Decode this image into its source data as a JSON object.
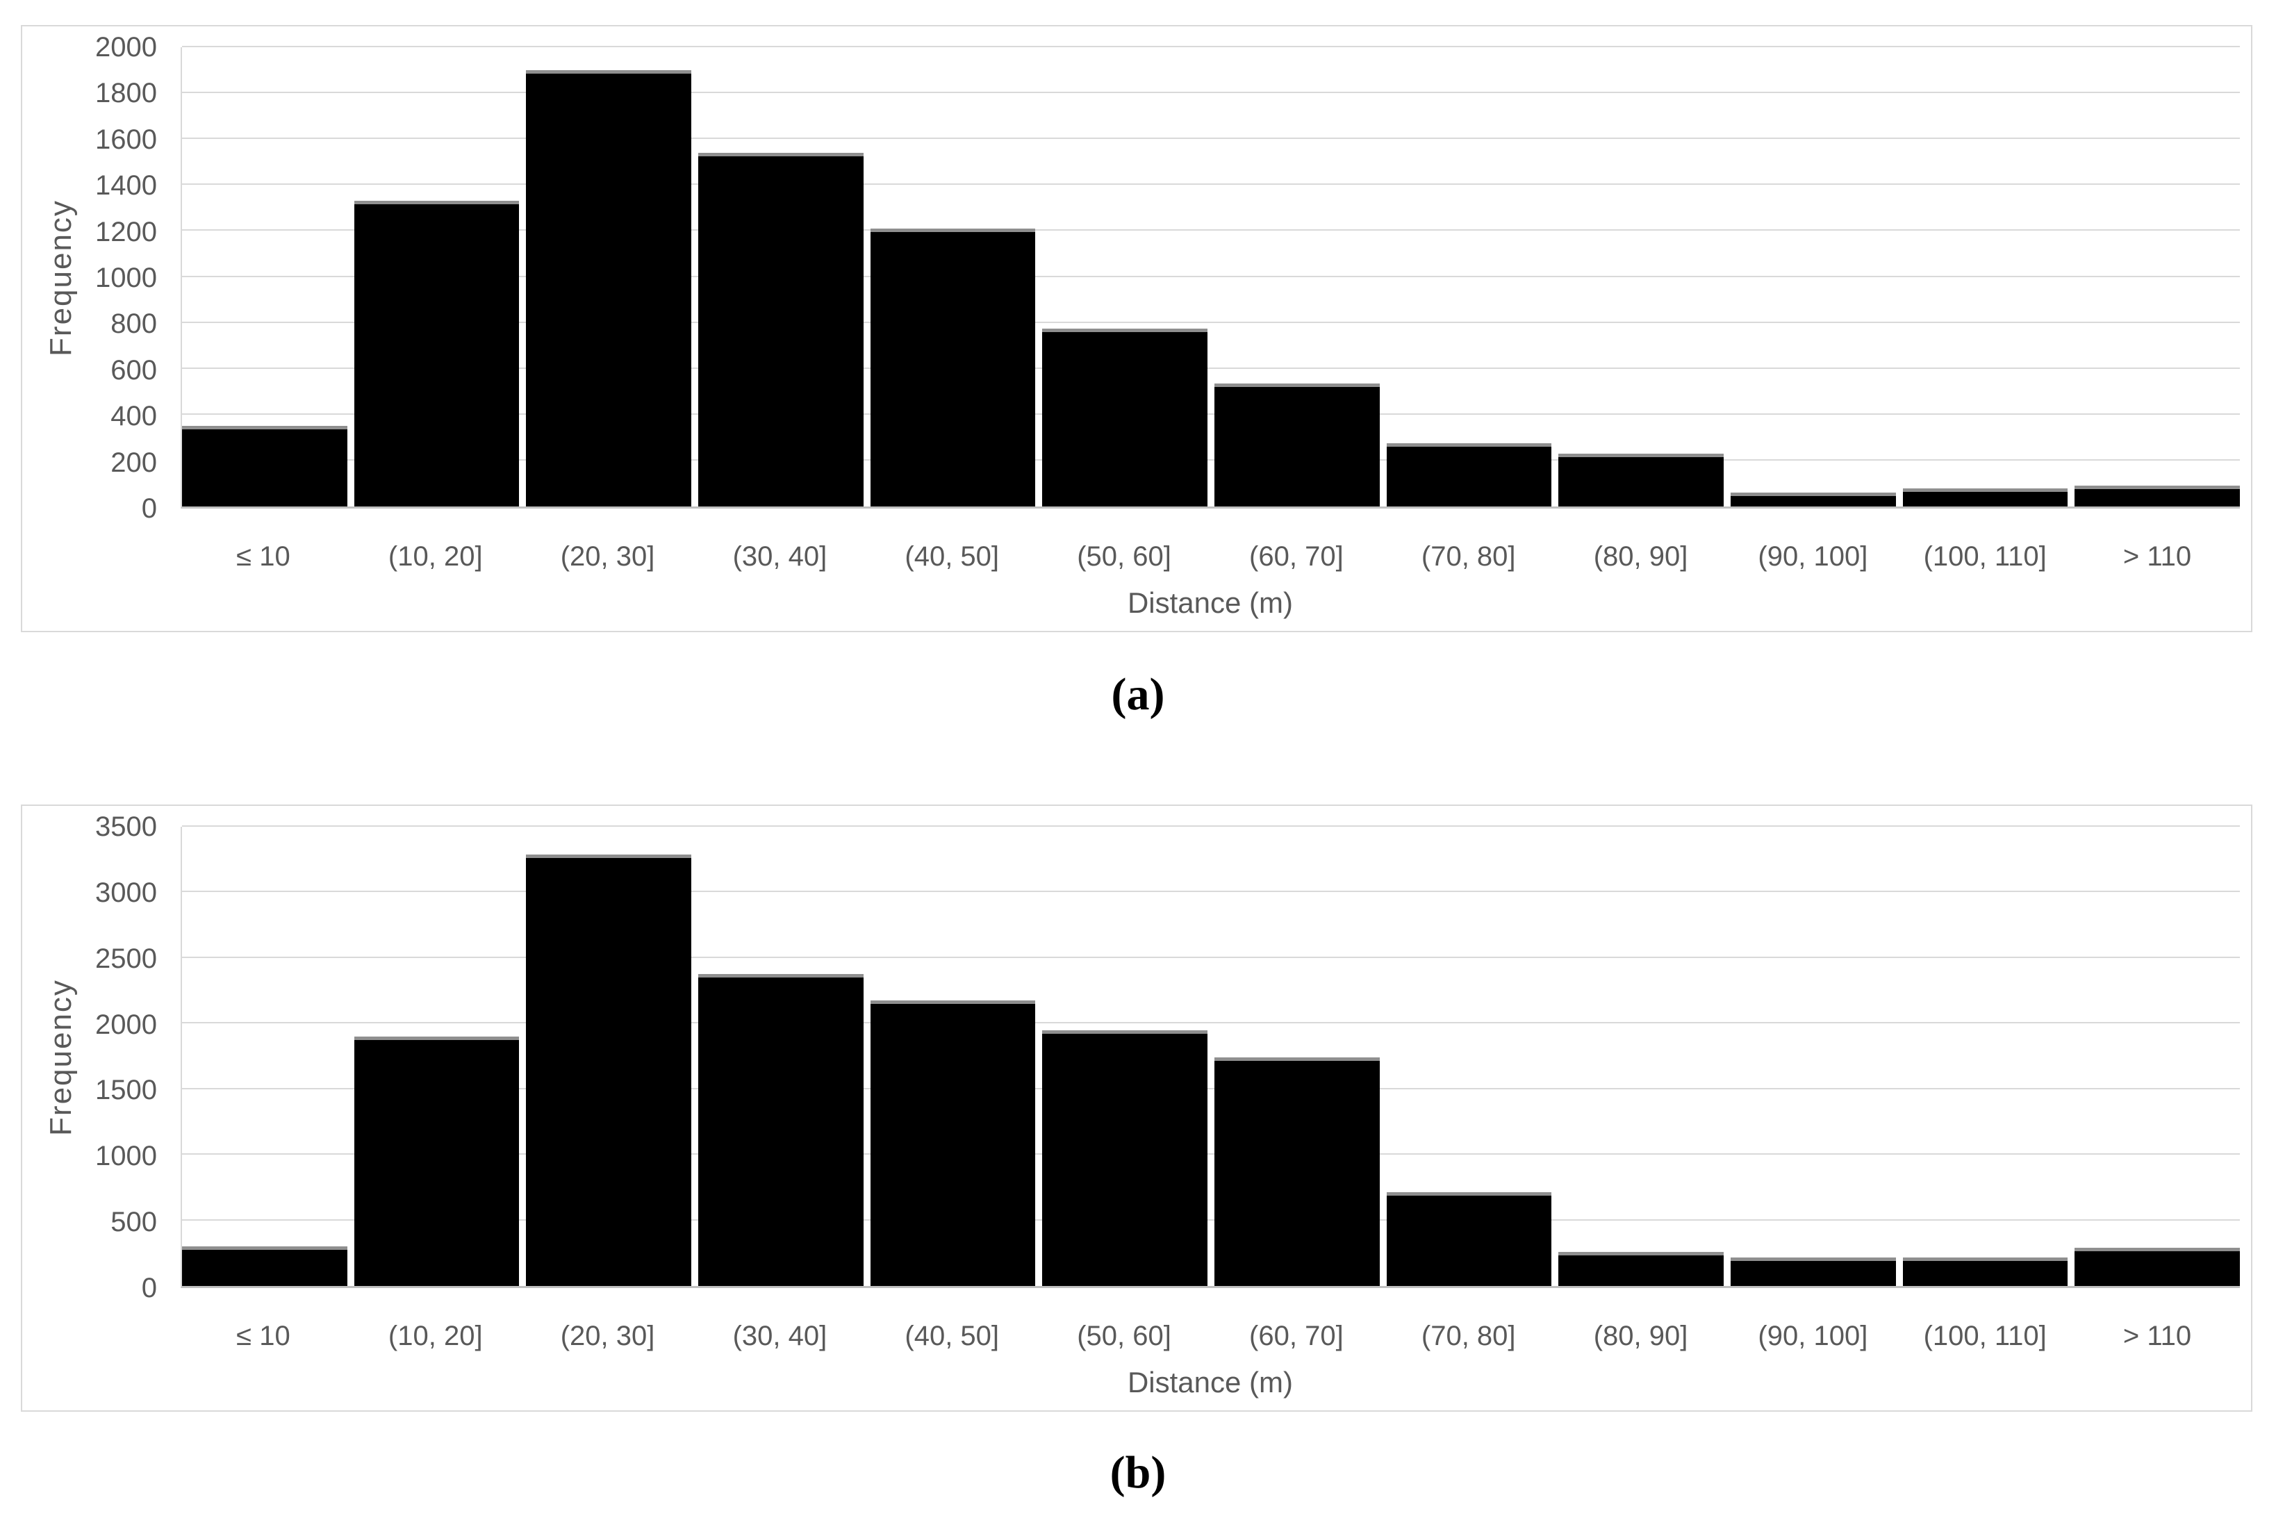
{
  "figure": {
    "caption_a": "(a)",
    "caption_b": "(b)"
  },
  "colors": {
    "bar_fill": "#000000",
    "bar_top_edge": "#8f8f8f",
    "gridline": "#d9d9d9",
    "axis_line": "#c0c0c0",
    "panel_border": "#d9d9d9",
    "label_text": "#595959",
    "background": "#ffffff"
  },
  "chart_data": [
    {
      "id": "a",
      "type": "bar",
      "title": "",
      "xlabel": "Distance (m)",
      "ylabel": "Frequency",
      "categories": [
        "≤ 10",
        "(10, 20]",
        "(20, 30]",
        "(30, 40]",
        "(40, 50]",
        "(50, 60]",
        "(60, 70]",
        "(70, 80]",
        "(80, 90]",
        "(90, 100]",
        "(100, 110]",
        "> 110"
      ],
      "values": [
        350,
        1330,
        1900,
        1540,
        1210,
        775,
        535,
        275,
        230,
        60,
        80,
        90
      ],
      "ylim": [
        0,
        2000
      ],
      "yticks": [
        0,
        200,
        400,
        600,
        800,
        1000,
        1200,
        1400,
        1600,
        1800,
        2000
      ],
      "grid": true,
      "legend": null
    },
    {
      "id": "b",
      "type": "bar",
      "title": "",
      "xlabel": "Distance (m)",
      "ylabel": "Frequency",
      "categories": [
        "≤ 10",
        "(10, 20]",
        "(20, 30]",
        "(30, 40]",
        "(40, 50]",
        "(50, 60]",
        "(60, 70]",
        "(70, 80]",
        "(80, 90]",
        "(90, 100]",
        "(100, 110]",
        "> 110"
      ],
      "values": [
        300,
        1900,
        3290,
        2375,
        2175,
        1950,
        1740,
        715,
        260,
        215,
        215,
        290
      ],
      "ylim": [
        0,
        3500
      ],
      "yticks": [
        0,
        500,
        1000,
        1500,
        2000,
        2500,
        3000,
        3500
      ],
      "grid": true,
      "legend": null
    }
  ]
}
